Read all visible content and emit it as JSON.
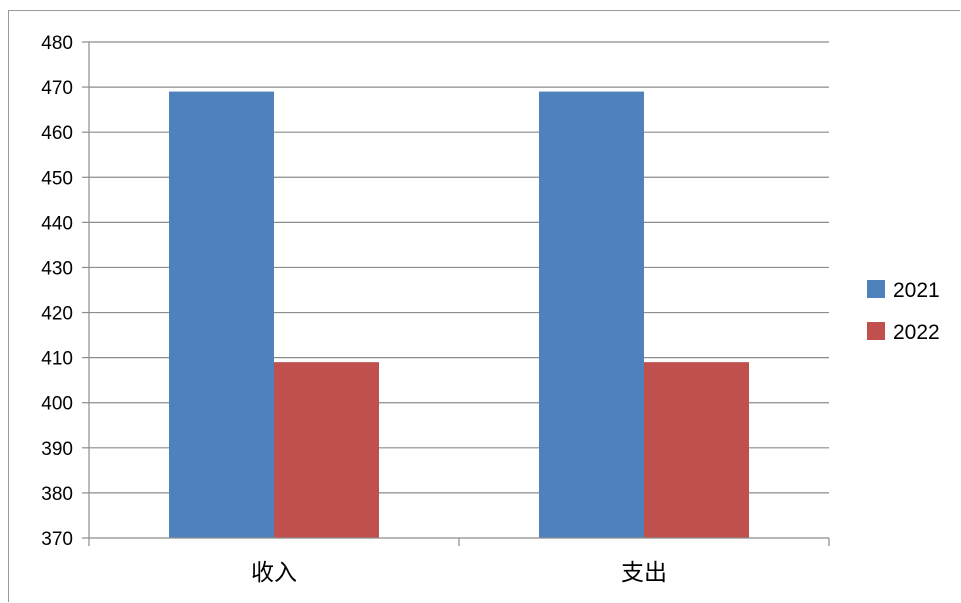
{
  "chart_data": {
    "type": "bar",
    "categories": [
      "收入",
      "支出"
    ],
    "series": [
      {
        "name": "2021",
        "values": [
          469,
          469
        ],
        "color": "#4f81bd"
      },
      {
        "name": "2022",
        "values": [
          409,
          409
        ],
        "color": "#c0504d"
      }
    ],
    "title": "",
    "xlabel": "",
    "ylabel": "",
    "ylim": [
      370,
      480
    ],
    "yticks": [
      370,
      380,
      390,
      400,
      410,
      420,
      430,
      440,
      450,
      460,
      470,
      480
    ],
    "grid": true,
    "legend_position": "right"
  }
}
